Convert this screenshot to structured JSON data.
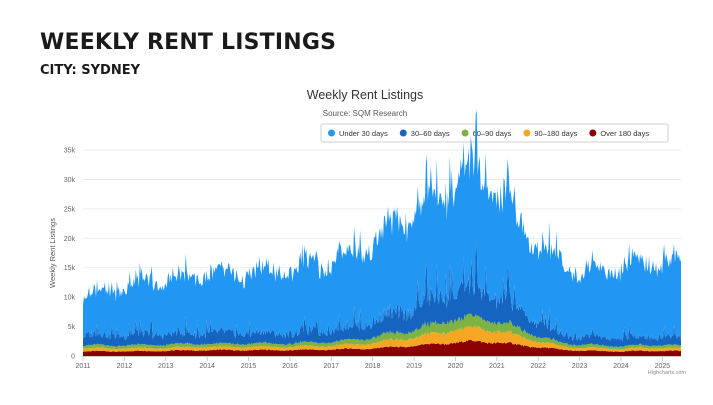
{
  "header": {
    "title": "WEEKLY RENT LISTINGS",
    "subtitle": "CITY: SYDNEY"
  },
  "chart_data": {
    "type": "area",
    "stacked": true,
    "title": "Weekly Rent Listings",
    "subtitle": "Source: SQM Research",
    "xlabel": "",
    "ylabel": "Weekly Rent Listings",
    "ylim": [
      0,
      35000
    ],
    "xlim": [
      2011,
      2025.45
    ],
    "yticks": [
      0,
      5000,
      10000,
      15000,
      20000,
      25000,
      30000,
      35000
    ],
    "ytick_labels": [
      "0",
      "5k",
      "10k",
      "15k",
      "20k",
      "25k",
      "30k",
      "35k"
    ],
    "xticks": [
      2011,
      2012,
      2013,
      2014,
      2015,
      2016,
      2017,
      2018,
      2019,
      2020,
      2021,
      2022,
      2023,
      2024,
      2025
    ],
    "xtick_labels": [
      "2011",
      "2012",
      "2013",
      "2014",
      "2015",
      "2016",
      "2017",
      "2018",
      "2019",
      "2020",
      "2021",
      "2022",
      "2023",
      "2024",
      "2025"
    ],
    "legend_position": "top-right",
    "credit": "Highcharts.com",
    "series": [
      {
        "name": "Over 180 days",
        "color": "#8b0000",
        "x": [
          2011,
          2012,
          2013,
          2014,
          2015,
          2016,
          2017,
          2018,
          2019,
          2019.5,
          2020,
          2020.5,
          2021,
          2021.5,
          2022,
          2022.5,
          2023,
          2024,
          2025,
          2025.45
        ],
        "values": [
          800,
          800,
          900,
          1000,
          1000,
          1000,
          1100,
          1300,
          1700,
          2000,
          2300,
          2500,
          2300,
          1900,
          1500,
          1100,
          900,
          800,
          900,
          800
        ]
      },
      {
        "name": "90–180 days",
        "color": "#f5a623",
        "x": [
          2011,
          2012,
          2013,
          2014,
          2015,
          2016,
          2017,
          2018,
          2019,
          2019.5,
          2020,
          2020.5,
          2021,
          2021.5,
          2022,
          2022.5,
          2023,
          2024,
          2025,
          2025.45
        ],
        "values": [
          500,
          500,
          500,
          550,
          550,
          550,
          650,
          900,
          1400,
          1800,
          2100,
          2300,
          1900,
          1500,
          1000,
          600,
          500,
          450,
          500,
          450
        ]
      },
      {
        "name": "60–90 days",
        "color": "#7cb342",
        "x": [
          2011,
          2012,
          2013,
          2014,
          2015,
          2016,
          2017,
          2018,
          2019,
          2019.5,
          2020,
          2020.5,
          2021,
          2021.5,
          2022,
          2022.5,
          2023,
          2024,
          2025,
          2025.45
        ],
        "values": [
          500,
          500,
          550,
          550,
          550,
          550,
          650,
          900,
          1300,
          1600,
          1800,
          1900,
          1600,
          1300,
          900,
          600,
          500,
          450,
          500,
          450
        ]
      },
      {
        "name": "30–60 days",
        "color": "#1565c0",
        "x": [
          2011,
          2012,
          2013,
          2014,
          2015,
          2016,
          2017,
          2018,
          2019,
          2019.5,
          2020,
          2020.5,
          2021,
          2021.5,
          2022,
          2022.5,
          2023,
          2024,
          2025,
          2025.45
        ],
        "values": [
          1800,
          1800,
          1800,
          1800,
          1800,
          1800,
          2000,
          2700,
          3800,
          4300,
          4600,
          4700,
          4100,
          3400,
          2400,
          1600,
          1400,
          1400,
          1500,
          1400
        ]
      },
      {
        "name": "Under 30 days",
        "color": "#2196f3",
        "x": [
          2011,
          2012,
          2013,
          2014,
          2015,
          2016,
          2017,
          2018,
          2019,
          2019.5,
          2020,
          2020.5,
          2021,
          2021.5,
          2022,
          2022.5,
          2023,
          2024,
          2025,
          2025.45
        ],
        "values": [
          6500,
          8200,
          9200,
          9900,
          10000,
          10800,
          11600,
          13500,
          16500,
          17500,
          18600,
          20100,
          17500,
          14900,
          12900,
          12500,
          11000,
          11900,
          13100,
          11800
        ]
      }
    ],
    "legend_order": [
      "Under 30 days",
      "30–60 days",
      "60–90 days",
      "90–180 days",
      "Over 180 days"
    ]
  }
}
